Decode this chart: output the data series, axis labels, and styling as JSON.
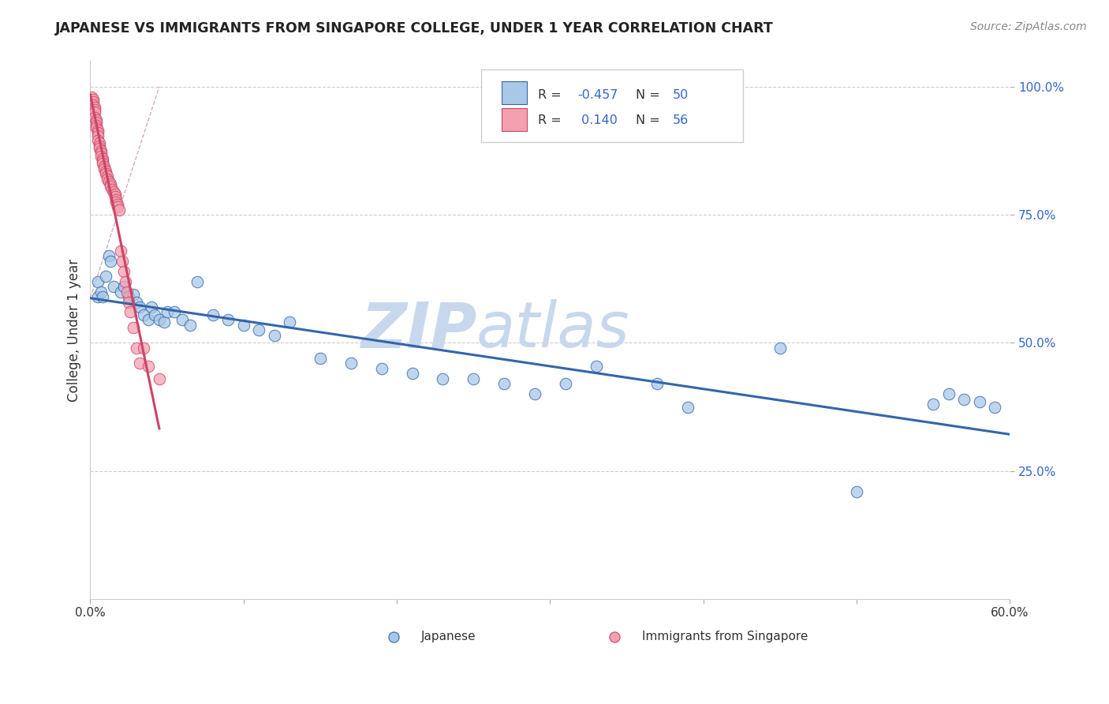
{
  "title": "JAPANESE VS IMMIGRANTS FROM SINGAPORE COLLEGE, UNDER 1 YEAR CORRELATION CHART",
  "source_text": "Source: ZipAtlas.com",
  "ylabel": "College, Under 1 year",
  "xlim": [
    0.0,
    0.6
  ],
  "ylim": [
    0.0,
    1.05
  ],
  "xtick_positions": [
    0.0,
    0.1,
    0.2,
    0.3,
    0.4,
    0.5,
    0.6
  ],
  "xtick_labels": [
    "0.0%",
    "",
    "",
    "",
    "",
    "",
    "60.0%"
  ],
  "ytick_positions": [
    0.25,
    0.5,
    0.75,
    1.0
  ],
  "ytick_labels": [
    "25.0%",
    "50.0%",
    "75.0%",
    "100.0%"
  ],
  "color_blue": "#A8C8E8",
  "color_pink": "#F4A0B0",
  "color_line_blue": "#3366AA",
  "color_line_pink": "#CC4466",
  "color_r_text": "#3366CC",
  "watermark": "ZIPatlas",
  "watermark_color": "#C8D8EC",
  "background_color": "#FFFFFF",
  "grid_color": "#CCCCCC",
  "blue_x": [
    0.005,
    0.005,
    0.007,
    0.008,
    0.01,
    0.012,
    0.013,
    0.015,
    0.02,
    0.022,
    0.025,
    0.028,
    0.03,
    0.032,
    0.035,
    0.038,
    0.04,
    0.042,
    0.045,
    0.048,
    0.05,
    0.055,
    0.06,
    0.065,
    0.07,
    0.08,
    0.09,
    0.1,
    0.11,
    0.12,
    0.13,
    0.15,
    0.17,
    0.19,
    0.21,
    0.23,
    0.25,
    0.27,
    0.29,
    0.31,
    0.33,
    0.37,
    0.39,
    0.45,
    0.5,
    0.55,
    0.56,
    0.57,
    0.58,
    0.59
  ],
  "blue_y": [
    0.62,
    0.59,
    0.6,
    0.59,
    0.63,
    0.67,
    0.66,
    0.61,
    0.6,
    0.61,
    0.59,
    0.595,
    0.58,
    0.57,
    0.555,
    0.545,
    0.57,
    0.555,
    0.545,
    0.54,
    0.56,
    0.56,
    0.545,
    0.535,
    0.62,
    0.555,
    0.545,
    0.535,
    0.525,
    0.515,
    0.54,
    0.47,
    0.46,
    0.45,
    0.44,
    0.43,
    0.43,
    0.42,
    0.4,
    0.42,
    0.455,
    0.42,
    0.375,
    0.49,
    0.21,
    0.38,
    0.4,
    0.39,
    0.385,
    0.375
  ],
  "pink_x": [
    0.001,
    0.002,
    0.002,
    0.002,
    0.003,
    0.003,
    0.003,
    0.003,
    0.004,
    0.004,
    0.004,
    0.004,
    0.005,
    0.005,
    0.005,
    0.005,
    0.006,
    0.006,
    0.006,
    0.007,
    0.007,
    0.007,
    0.008,
    0.008,
    0.008,
    0.009,
    0.009,
    0.01,
    0.01,
    0.011,
    0.011,
    0.012,
    0.013,
    0.013,
    0.014,
    0.015,
    0.016,
    0.016,
    0.017,
    0.017,
    0.018,
    0.018,
    0.019,
    0.02,
    0.021,
    0.022,
    0.023,
    0.024,
    0.025,
    0.026,
    0.028,
    0.03,
    0.032,
    0.035,
    0.038,
    0.045
  ],
  "pink_y": [
    0.98,
    0.975,
    0.97,
    0.965,
    0.96,
    0.955,
    0.95,
    0.94,
    0.935,
    0.93,
    0.925,
    0.92,
    0.915,
    0.91,
    0.905,
    0.895,
    0.89,
    0.885,
    0.88,
    0.875,
    0.87,
    0.865,
    0.86,
    0.855,
    0.85,
    0.845,
    0.84,
    0.835,
    0.83,
    0.825,
    0.82,
    0.815,
    0.81,
    0.805,
    0.8,
    0.795,
    0.79,
    0.785,
    0.78,
    0.775,
    0.77,
    0.765,
    0.76,
    0.68,
    0.66,
    0.64,
    0.62,
    0.6,
    0.58,
    0.56,
    0.53,
    0.49,
    0.46,
    0.49,
    0.455,
    0.43
  ]
}
